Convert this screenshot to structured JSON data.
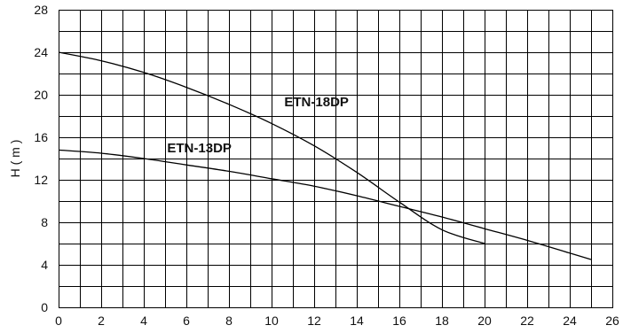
{
  "chart_data": {
    "type": "line",
    "title": "",
    "xlabel": "",
    "ylabel": "H ( m )",
    "xlim": [
      0,
      26
    ],
    "ylim": [
      0,
      28
    ],
    "grid": true,
    "x_ticks": [
      "0",
      "2",
      "4",
      "6",
      "8",
      "10",
      "12",
      "14",
      "16",
      "18",
      "20",
      "22",
      "24",
      "26"
    ],
    "y_ticks": [
      "0",
      "4",
      "8",
      "12",
      "16",
      "20",
      "24",
      "28"
    ],
    "series": [
      {
        "name": "ETN-18DP",
        "x": [
          0,
          2,
          4,
          6,
          8,
          10,
          12,
          14,
          16,
          18,
          20
        ],
        "y": [
          24.0,
          23.2,
          22.1,
          20.7,
          19.1,
          17.3,
          15.2,
          12.7,
          9.9,
          7.3,
          6.0
        ]
      },
      {
        "name": "ETN-13DP",
        "x": [
          0,
          2,
          4,
          6,
          8,
          10,
          12,
          14,
          16,
          18,
          20,
          22,
          24,
          25
        ],
        "y": [
          14.8,
          14.5,
          14.0,
          13.4,
          12.8,
          12.1,
          11.4,
          10.5,
          9.5,
          8.5,
          7.4,
          6.3,
          5.1,
          4.5
        ]
      }
    ]
  }
}
